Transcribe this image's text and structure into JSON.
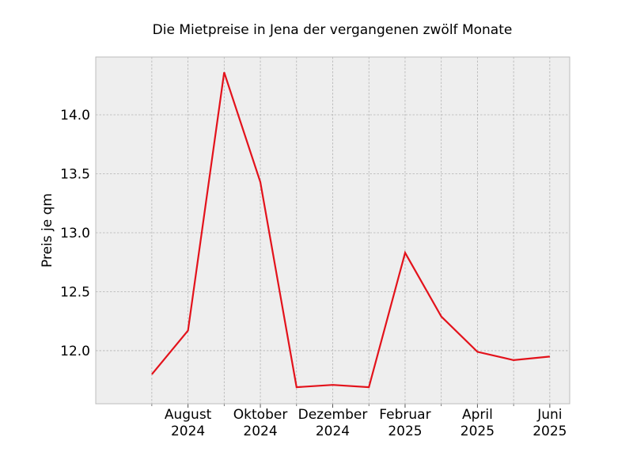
{
  "chart_data": {
    "type": "line",
    "title": "Die Mietpreise in Jena der vergangenen zwölf Monate",
    "xlabel": "",
    "ylabel": "Preis je qm",
    "x": [
      "2024-07",
      "2024-08",
      "2024-09",
      "2024-10",
      "2024-11",
      "2024-12",
      "2025-01",
      "2025-02",
      "2025-03",
      "2025-04",
      "2025-05",
      "2025-06"
    ],
    "series": [
      {
        "values": [
          11.8,
          12.17,
          14.36,
          13.43,
          11.69,
          11.71,
          11.69,
          12.83,
          12.29,
          11.99,
          11.92,
          11.95
        ]
      }
    ],
    "x_ticks": [
      {
        "x": "2024-08",
        "label": [
          "August",
          "2024"
        ]
      },
      {
        "x": "2024-10",
        "label": [
          "Oktober",
          "2024"
        ]
      },
      {
        "x": "2024-12",
        "label": [
          "Dezember",
          "2024"
        ]
      },
      {
        "x": "2025-02",
        "label": [
          "Februar",
          "2025"
        ]
      },
      {
        "x": "2025-04",
        "label": [
          "April",
          "2025"
        ]
      },
      {
        "x": "2025-06",
        "label": [
          "Juni",
          "2025"
        ]
      }
    ],
    "minor_x_ticks": [
      "2024-07",
      "2024-09",
      "2024-11",
      "2025-01",
      "2025-03",
      "2025-05"
    ],
    "xlim": [
      "2024-06",
      "2025-06"
    ],
    "y_ticks": [
      12.0,
      12.5,
      13.0,
      13.5,
      14.0
    ],
    "y_tick_labels": [
      "12.0",
      "12.5",
      "13.0",
      "13.5",
      "14.0"
    ],
    "ylim": [
      11.55,
      14.49
    ],
    "grid": true,
    "colors": {
      "line": "#e3121b",
      "plot_background": "#eeeeee",
      "grid": "#b2b2b2",
      "frame": "#bcbcbc"
    }
  }
}
